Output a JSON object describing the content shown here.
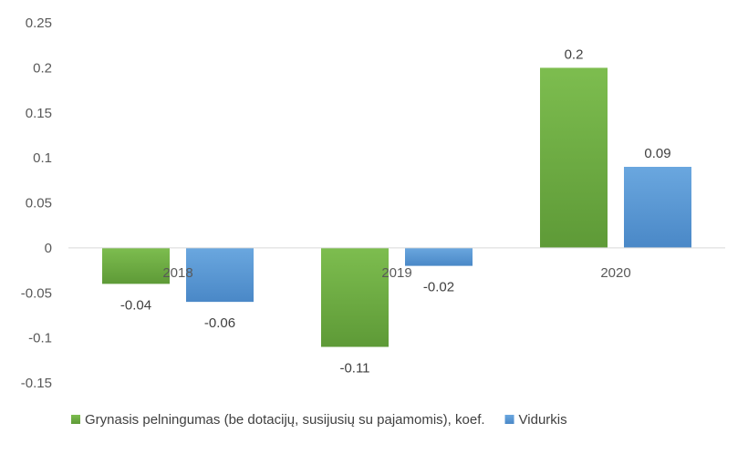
{
  "chart_data": {
    "type": "bar",
    "categories": [
      "2018",
      "2019",
      "2020"
    ],
    "series": [
      {
        "name": "Grynasis pelningumas (be dotacijų, susijusių su pajamomis), koef.",
        "values": [
          -0.04,
          -0.11,
          0.2
        ],
        "labels": [
          "-0.04",
          "-0.11",
          "0.2"
        ],
        "color": "#70ad47"
      },
      {
        "name": "Vidurkis",
        "values": [
          -0.06,
          -0.02,
          0.09
        ],
        "labels": [
          "-0.06",
          "-0.02",
          "0.09"
        ],
        "color": "#5b9bd5"
      }
    ],
    "ylim": [
      -0.15,
      0.25
    ],
    "yticks": [
      0.25,
      0.2,
      0.15,
      0.1,
      0.05,
      0,
      -0.05,
      -0.1,
      -0.15
    ],
    "ytick_labels": [
      "0.25",
      "0.2",
      "0.15",
      "0.1",
      "0.05",
      "0",
      "-0.05",
      "-0.1",
      "-0.15"
    ],
    "grid": false,
    "legend": "bottom"
  }
}
